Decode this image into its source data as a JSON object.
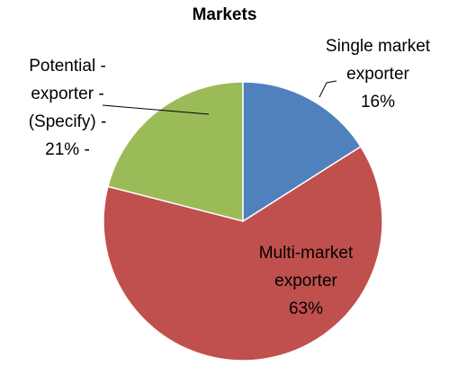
{
  "chart_data": {
    "type": "pie",
    "title": "Markets",
    "categories": [
      "Single market exporter",
      "Multi-market exporter",
      "Potential - exporter - (Specify) -"
    ],
    "values": [
      16,
      63,
      21
    ],
    "value_labels": [
      "16%",
      "63%",
      "21% -"
    ],
    "colors": [
      "#4f81bd",
      "#c0504d",
      "#9bbb59"
    ]
  }
}
